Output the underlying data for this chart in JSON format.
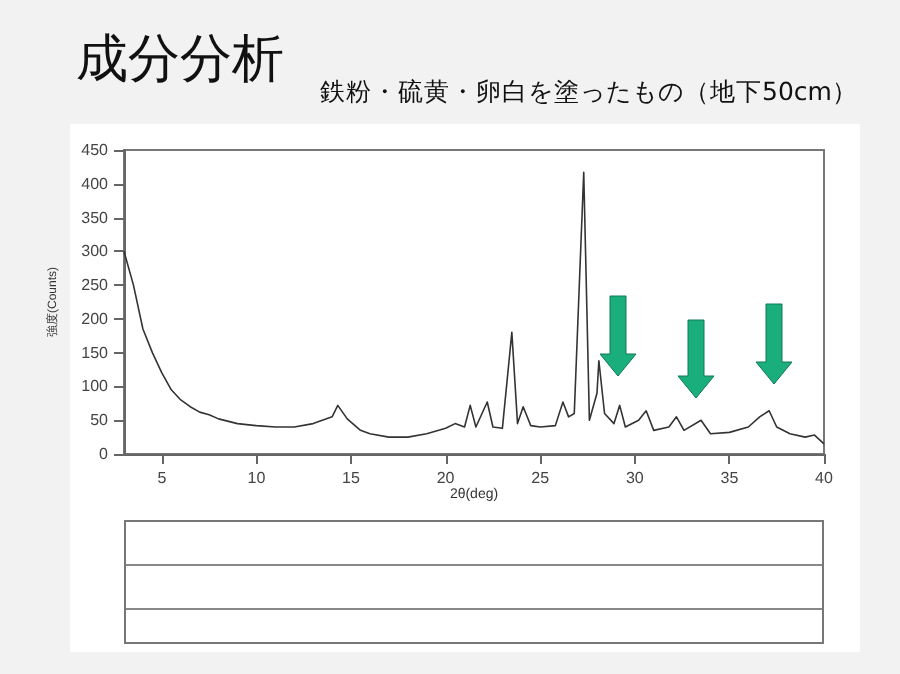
{
  "chart_data": {
    "type": "line",
    "title": "成分分析",
    "subtitle": "鉄粉・硫黄・卵白を塗ったもの（地下50cm）",
    "xlabel": "2θ(deg)",
    "ylabel": "強度(Counts)",
    "x": [
      3,
      3.5,
      4,
      4.5,
      5,
      5.5,
      6,
      6.5,
      7,
      7.5,
      8,
      9,
      10,
      11,
      12,
      13,
      14,
      14.3,
      14.8,
      15.5,
      16,
      17,
      18,
      19,
      20,
      20.5,
      21,
      21.3,
      21.6,
      22.2,
      22.5,
      23,
      23.5,
      23.8,
      24.1,
      24.5,
      25,
      25.8,
      26.2,
      26.5,
      26.8,
      27.3,
      27.6,
      28,
      28.1,
      28.4,
      28.9,
      29.2,
      29.5,
      30.2,
      30.6,
      31,
      31.8,
      32.2,
      32.6,
      33.5,
      34,
      35,
      36,
      36.6,
      37.1,
      37.5,
      38.2,
      39,
      39.5,
      40
    ],
    "series": [
      {
        "color": "#333333",
        "values": [
          300,
          250,
          185,
          150,
          120,
          95,
          80,
          70,
          62,
          58,
          52,
          45,
          42,
          40,
          40,
          45,
          55,
          72,
          52,
          35,
          30,
          25,
          25,
          30,
          38,
          45,
          40,
          72,
          40,
          77,
          40,
          38,
          180,
          45,
          70,
          42,
          40,
          42,
          77,
          55,
          60,
          417,
          50,
          90,
          138,
          60,
          45,
          72,
          40,
          50,
          64,
          35,
          40,
          55,
          35,
          50,
          30,
          32,
          40,
          55,
          64,
          40,
          30,
          25,
          28,
          15
        ]
      }
    ],
    "xlim": [
      3,
      40
    ],
    "xticks": [
      5,
      10,
      15,
      20,
      25,
      30,
      35,
      40
    ],
    "ylim": [
      0,
      450
    ],
    "yticks": [
      0,
      50,
      100,
      150,
      200,
      250,
      300,
      350,
      400,
      450
    ],
    "grid": false,
    "marker": "none",
    "line_style": "solid"
  }
}
